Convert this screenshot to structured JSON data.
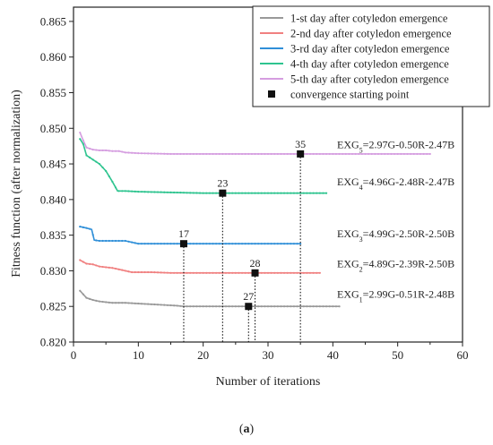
{
  "chart_data": {
    "type": "line",
    "xlabel": "Number of iterations",
    "ylabel": "Fitness function (after normalization)",
    "xlim": [
      0,
      60
    ],
    "ylim": [
      0.82,
      0.867
    ],
    "xticks": [
      "0",
      "10",
      "20",
      "30",
      "40",
      "50",
      "60"
    ],
    "xtick_values": [
      0,
      10,
      20,
      30,
      40,
      50,
      60
    ],
    "yticks": [
      "0.820",
      "0.825",
      "0.830",
      "0.835",
      "0.840",
      "0.845",
      "0.850",
      "0.855",
      "0.860",
      "0.865"
    ],
    "ytick_values": [
      0.82,
      0.825,
      0.83,
      0.835,
      0.84,
      0.845,
      0.85,
      0.855,
      0.86,
      0.865
    ],
    "grid": false,
    "legend_position": "top-right",
    "series": [
      {
        "name": "1-st day after cotyledon emergence",
        "color": "#999999",
        "x": [
          1,
          2,
          3,
          4,
          5,
          6,
          8,
          10,
          12,
          14,
          16,
          17,
          20,
          25,
          27,
          30,
          35,
          41
        ],
        "y": [
          0.8272,
          0.8262,
          0.8259,
          0.8257,
          0.8256,
          0.8255,
          0.8255,
          0.8254,
          0.8253,
          0.8252,
          0.8251,
          0.825,
          0.825,
          0.825,
          0.825,
          0.825,
          0.825,
          0.825
        ]
      },
      {
        "name": "2-nd day after cotyledon emergence",
        "color": "#f08080",
        "x": [
          1,
          2,
          3,
          4,
          5,
          6,
          7,
          8,
          9,
          10,
          12,
          15,
          20,
          25,
          28,
          30,
          35,
          38
        ],
        "y": [
          0.8315,
          0.831,
          0.8309,
          0.8306,
          0.8305,
          0.8304,
          0.8302,
          0.83,
          0.8298,
          0.8298,
          0.8298,
          0.8297,
          0.8297,
          0.8297,
          0.8297,
          0.8297,
          0.8297,
          0.8297
        ]
      },
      {
        "name": "3-rd day after cotyledon emergence",
        "color": "#2f8fd8",
        "x": [
          1,
          2,
          2.8,
          3.2,
          4,
          6,
          8,
          10,
          12,
          15,
          17,
          20,
          25,
          30,
          35
        ],
        "y": [
          0.8362,
          0.836,
          0.8358,
          0.8343,
          0.8342,
          0.8342,
          0.8342,
          0.8338,
          0.8338,
          0.8338,
          0.8338,
          0.8338,
          0.8338,
          0.8338,
          0.8338
        ]
      },
      {
        "name": "4-th day after cotyledon emergence",
        "color": "#2ec48f",
        "x": [
          1,
          1.5,
          2,
          3,
          4,
          5,
          6,
          6.8,
          8,
          10,
          15,
          20,
          23,
          25,
          30,
          35,
          39
        ],
        "y": [
          0.8485,
          0.8478,
          0.8462,
          0.8456,
          0.845,
          0.844,
          0.8425,
          0.8412,
          0.8412,
          0.8411,
          0.841,
          0.8409,
          0.8409,
          0.8409,
          0.8409,
          0.8409,
          0.8409
        ]
      },
      {
        "name": "5-th day after cotyledon emergence",
        "color": "#d59de0",
        "x": [
          1,
          1.5,
          2,
          3,
          4,
          5,
          6,
          7,
          8,
          10,
          15,
          20,
          25,
          30,
          35,
          40,
          45,
          50,
          55
        ],
        "y": [
          0.8494,
          0.8483,
          0.8473,
          0.847,
          0.8469,
          0.8469,
          0.8468,
          0.8468,
          0.8466,
          0.8465,
          0.8464,
          0.8464,
          0.8464,
          0.8464,
          0.8464,
          0.8464,
          0.8464,
          0.8464,
          0.8464
        ]
      }
    ],
    "convergence_legend": "convergence starting point",
    "convergence_points": [
      {
        "x": 27,
        "y": 0.825,
        "label": "27"
      },
      {
        "x": 28,
        "y": 0.8297,
        "label": "28"
      },
      {
        "x": 17,
        "y": 0.8338,
        "label": "17"
      },
      {
        "x": 23,
        "y": 0.8409,
        "label": "23"
      },
      {
        "x": 35,
        "y": 0.8464,
        "label": "35"
      }
    ],
    "equations": [
      {
        "prefix": "EXG",
        "sub": "5",
        "rest": "=2.97G-0.50R-2.47B",
        "y": 0.8477
      },
      {
        "prefix": "EXG",
        "sub": "4",
        "rest": "=4.96G-2.48R-2.47B",
        "y": 0.8425
      },
      {
        "prefix": "EXG",
        "sub": "3",
        "rest": "=4.99G-2.50R-2.50B",
        "y": 0.8352
      },
      {
        "prefix": "EXG",
        "sub": "2",
        "rest": "=4.89G-2.39R-2.50B",
        "y": 0.831
      },
      {
        "prefix": "EXG",
        "sub": "1",
        "rest": "=2.99G-0.51R-2.48B",
        "y": 0.8267
      }
    ],
    "panel_label": {
      "open": "(",
      "letter": "a",
      "close": ")"
    }
  }
}
